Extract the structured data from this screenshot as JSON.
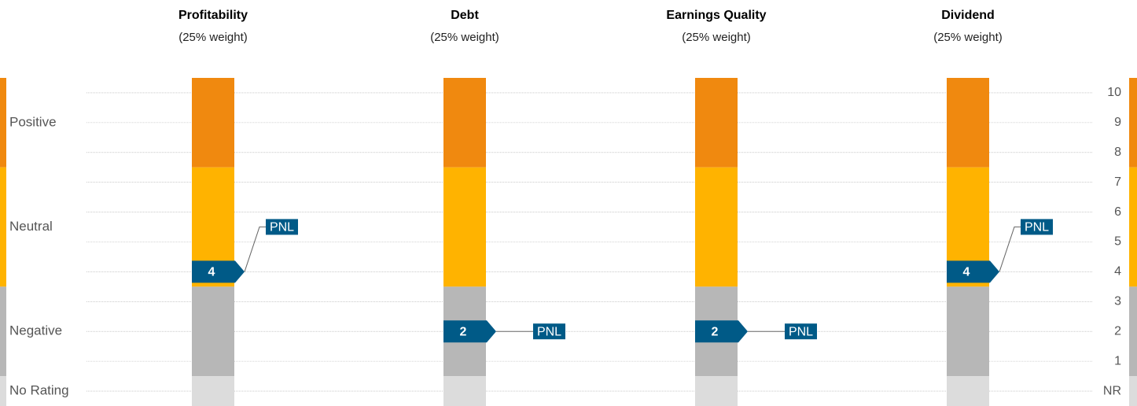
{
  "chart_data": {
    "type": "rating",
    "categories": [
      "Profitability",
      "Debt",
      "Earnings Quality",
      "Dividend"
    ],
    "subtitles": [
      "(25% weight)",
      "(25% weight)",
      "(25% weight)",
      "(25% weight)"
    ],
    "values": [
      4,
      2,
      2,
      4
    ],
    "marker_labels": [
      "PNL",
      "PNL",
      "PNL",
      "PNL"
    ],
    "marker_color": "#005a87",
    "bands": [
      {
        "name": "Positive",
        "range": [
          7.5,
          10.5
        ],
        "color": "#f0890f"
      },
      {
        "name": "Neutral",
        "range": [
          3.5,
          7.5
        ],
        "color": "#ffb300"
      },
      {
        "name": "Negative",
        "range": [
          0.5,
          3.5
        ],
        "color": "#b7b7b7"
      },
      {
        "name": "No Rating",
        "range": [
          -0.5,
          0.5
        ],
        "color": "#dcdcdc"
      }
    ],
    "ylim": [
      -0.5,
      10.5
    ],
    "yticks": [
      {
        "value": 0,
        "label": "NR"
      },
      1,
      2,
      3,
      4,
      5,
      6,
      7,
      8,
      9,
      10
    ],
    "grid": true
  }
}
